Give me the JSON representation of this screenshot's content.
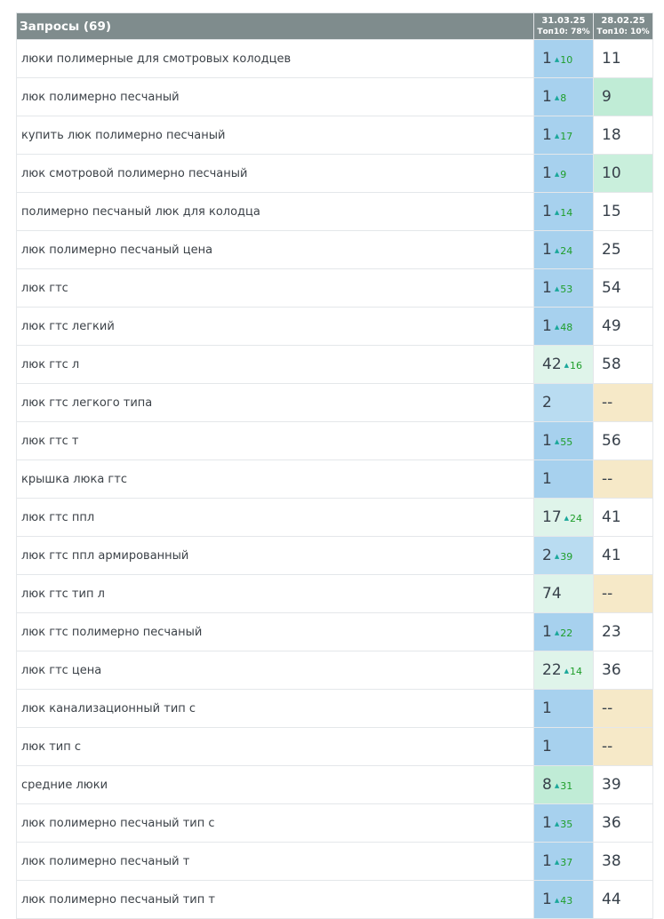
{
  "header": {
    "queries_label": "Запросы (69)",
    "dates": [
      {
        "date": "31.03.25",
        "top10": "Топ10: 78%"
      },
      {
        "date": "28.02.25",
        "top10": "Топ10: 10%"
      }
    ]
  },
  "colors": {
    "pos1": "#a7d1ee",
    "pos2_3": "#b9dcf1",
    "pos4_9": "#c0ecd6",
    "pos10": "#c9efdc",
    "pos11_plus": "#dff4ea",
    "not_found": "#f6e9c8",
    "header": "#7f8c8d",
    "delta_up": "#1e9e2a"
  },
  "rows": [
    {
      "query": "люки полимерные для смотровых колодцев",
      "cur": "1",
      "delta": "10",
      "prev": "11"
    },
    {
      "query": "люк полимерно песчаный",
      "cur": "1",
      "delta": "8",
      "prev": "9"
    },
    {
      "query": "купить люк полимерно песчаный",
      "cur": "1",
      "delta": "17",
      "prev": "18"
    },
    {
      "query": "люк смотровой полимерно песчаный",
      "cur": "1",
      "delta": "9",
      "prev": "10"
    },
    {
      "query": "полимерно песчаный люк для колодца",
      "cur": "1",
      "delta": "14",
      "prev": "15"
    },
    {
      "query": "люк полимерно песчаный цена",
      "cur": "1",
      "delta": "24",
      "prev": "25"
    },
    {
      "query": "люк гтс",
      "cur": "1",
      "delta": "53",
      "prev": "54"
    },
    {
      "query": "люк гтс легкий",
      "cur": "1",
      "delta": "48",
      "prev": "49"
    },
    {
      "query": "люк гтс л",
      "cur": "42",
      "delta": "16",
      "prev": "58"
    },
    {
      "query": "люк гтс легкого типа",
      "cur": "2",
      "delta": "",
      "prev": "--"
    },
    {
      "query": "люк гтс т",
      "cur": "1",
      "delta": "55",
      "prev": "56"
    },
    {
      "query": "крышка люка гтс",
      "cur": "1",
      "delta": "",
      "prev": "--"
    },
    {
      "query": "люк гтс ппл",
      "cur": "17",
      "delta": "24",
      "prev": "41"
    },
    {
      "query": "люк гтс ппл армированный",
      "cur": "2",
      "delta": "39",
      "prev": "41"
    },
    {
      "query": "люк гтс тип л",
      "cur": "74",
      "delta": "",
      "prev": "--"
    },
    {
      "query": "люк гтс полимерно песчаный",
      "cur": "1",
      "delta": "22",
      "prev": "23"
    },
    {
      "query": "люк гтс цена",
      "cur": "22",
      "delta": "14",
      "prev": "36"
    },
    {
      "query": "люк канализационный тип с",
      "cur": "1",
      "delta": "",
      "prev": "--"
    },
    {
      "query": "люк тип с",
      "cur": "1",
      "delta": "",
      "prev": "--"
    },
    {
      "query": "средние люки",
      "cur": "8",
      "delta": "31",
      "prev": "39"
    },
    {
      "query": "люк полимерно песчаный тип с",
      "cur": "1",
      "delta": "35",
      "prev": "36"
    },
    {
      "query": "люк полимерно песчаный т",
      "cur": "1",
      "delta": "37",
      "prev": "38"
    },
    {
      "query": "люк полимерно песчаный тип т",
      "cur": "1",
      "delta": "43",
      "prev": "44"
    }
  ]
}
